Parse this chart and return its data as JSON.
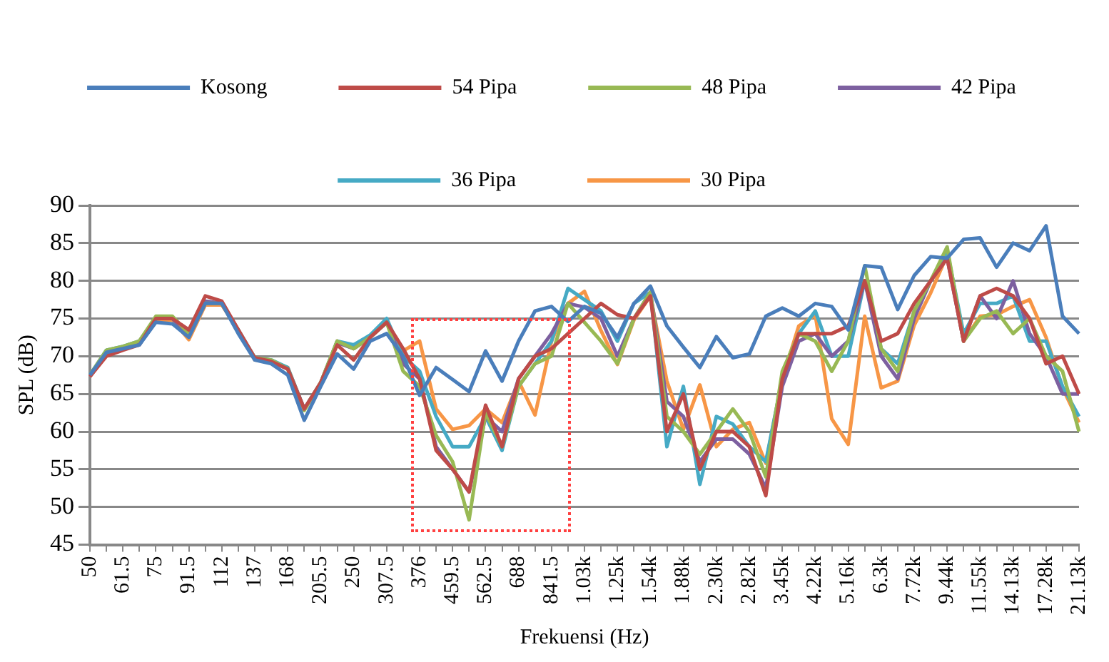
{
  "chart_data": {
    "type": "line",
    "xlabel": "Frekuensi (Hz)",
    "ylabel": "SPL (dB)",
    "categories": [
      "50",
      null,
      "61.5",
      null,
      "75",
      null,
      "91.5",
      null,
      "112",
      null,
      "137",
      null,
      "168",
      null,
      "205.5",
      null,
      "250",
      null,
      "307.5",
      null,
      "376",
      null,
      "459.5",
      null,
      "562.5",
      null,
      "688",
      null,
      "841.5",
      null,
      "1.03k",
      null,
      "1.25k",
      null,
      "1.54k",
      null,
      "1.88k",
      null,
      "2.30k",
      null,
      "2.82k",
      null,
      "3.45k",
      null,
      "4.22k",
      null,
      "5.16k",
      null,
      "6.3k",
      null,
      "7.72k",
      null,
      "9.44k",
      null,
      "11.55k",
      null,
      "14.13k",
      null,
      "17.28k",
      null,
      "21.13k"
    ],
    "ylim": [
      45,
      90
    ],
    "yticks": [
      45,
      50,
      55,
      60,
      65,
      70,
      75,
      80,
      85,
      90
    ],
    "grid": "y",
    "legend": "top",
    "marker": "none",
    "line_style": "solid",
    "series": [
      {
        "name": "Kosong",
        "color": "#4a7ebb",
        "values": [
          67.5,
          70.5,
          71,
          71.5,
          74.5,
          74.3,
          72.5,
          77,
          77,
          73,
          69.5,
          69,
          67.5,
          61.5,
          66,
          70.3,
          68.3,
          72,
          73,
          70,
          64.8,
          68.5,
          66.9,
          65.3,
          70.7,
          66.7,
          72,
          76,
          76.6,
          74.6,
          76.6,
          75.7,
          72.5,
          77,
          79.3,
          74,
          71.2,
          68.5,
          72.6,
          69.8,
          70.3,
          75.3,
          76.4,
          75.3,
          77,
          76.6,
          73.5,
          82,
          81.8,
          76.2,
          80.7,
          83.2,
          83,
          85.5,
          85.7,
          81.8,
          85,
          84,
          87.3,
          75.3,
          73
        ]
      },
      {
        "name": "54 Pipa",
        "color": "#be4b48",
        "values": [
          67.3,
          70,
          70.8,
          71.5,
          75,
          75,
          73.5,
          78,
          77.3,
          73.5,
          69.8,
          69.3,
          68.3,
          63,
          66.5,
          71.5,
          69.5,
          72.5,
          74.5,
          71,
          67,
          57.5,
          55,
          52,
          63.5,
          58,
          67,
          70,
          71,
          73,
          75,
          77,
          75.5,
          75,
          78,
          60,
          65,
          55,
          60,
          60,
          58,
          51.5,
          67,
          73,
          73,
          73,
          74,
          80,
          72,
          73,
          77,
          80,
          83,
          72,
          78,
          79,
          78,
          75,
          69,
          70,
          65
        ]
      },
      {
        "name": "48 Pipa",
        "color": "#98b954",
        "values": [
          67.5,
          70.8,
          71.3,
          72,
          75.3,
          75.3,
          73,
          77,
          77,
          73.3,
          69.8,
          69.5,
          68.3,
          62.8,
          66.5,
          72,
          71,
          72.5,
          74.5,
          68,
          66,
          59.5,
          56,
          48.3,
          62.5,
          58,
          66,
          69,
          70,
          77,
          74.5,
          72,
          69,
          75,
          78.5,
          62,
          60,
          57,
          60,
          63,
          60,
          54,
          68,
          73,
          72,
          68,
          72,
          82,
          71,
          68,
          76,
          80,
          84.5,
          72,
          75,
          76,
          73,
          75,
          70,
          68,
          60
        ]
      },
      {
        "name": "42 Pipa",
        "color": "#7d60a0",
        "values": [
          67.3,
          70.3,
          71,
          72,
          75,
          75,
          72.8,
          77.3,
          77,
          73.3,
          69.6,
          69.3,
          68.3,
          63,
          66.3,
          71.8,
          71,
          72.5,
          74.5,
          69,
          67,
          58,
          55,
          52,
          62,
          60,
          67,
          70,
          73,
          77,
          76.5,
          75,
          70,
          75,
          78.5,
          64,
          62,
          56,
          59,
          59,
          57,
          52.5,
          66,
          72,
          73,
          70,
          72,
          80,
          70,
          67,
          75,
          80,
          83,
          72,
          78,
          75,
          80,
          73,
          70,
          65,
          65
        ]
      },
      {
        "name": "36 Pipa",
        "color": "#46aac5",
        "values": [
          67.5,
          70.8,
          71.3,
          72,
          75,
          75,
          73,
          77.3,
          77,
          73.5,
          69.8,
          69.5,
          68.5,
          63,
          66.5,
          72,
          71.5,
          72.8,
          75,
          70,
          68,
          62,
          58,
          58,
          62,
          57.5,
          66,
          69,
          72,
          79,
          77.5,
          76,
          72,
          77,
          78.5,
          58,
          66,
          53,
          62,
          61,
          58,
          56,
          67,
          73,
          76,
          70,
          70,
          80,
          71,
          69,
          76,
          80,
          84,
          73,
          77,
          77,
          78,
          72,
          72,
          66,
          62
        ]
      },
      {
        "name": "30 Pipa",
        "color": "#f79646",
        "values": [
          67.3,
          70.3,
          71,
          72,
          74.8,
          74.8,
          72.2,
          76.8,
          76.8,
          73.5,
          69.5,
          69.3,
          68.5,
          63,
          66.5,
          72,
          71,
          72.5,
          74.5,
          70.7,
          72,
          63,
          60.3,
          60.8,
          63,
          61.2,
          66.7,
          62.2,
          72,
          77,
          78.6,
          73.4,
          68.9,
          74.8,
          78,
          66.7,
          60.3,
          66.2,
          58,
          60.3,
          61.2,
          55.8,
          67,
          74,
          75.5,
          61.7,
          58.3,
          75.3,
          65.8,
          66.7,
          74.1,
          78.4,
          83.4,
          72,
          75.3,
          75.5,
          76.6,
          77.5,
          72.5,
          65.8,
          61.2
        ]
      }
    ]
  }
}
